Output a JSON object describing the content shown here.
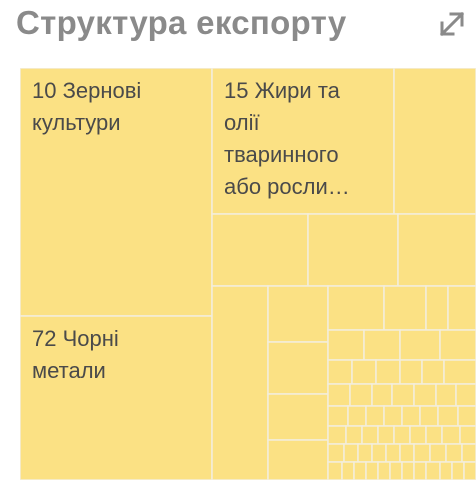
{
  "header": {
    "title": "Структура експорту",
    "expand_icon": "expand-diagonal-arrows-icon",
    "title_color": "#8a8a8a"
  },
  "colors": {
    "cell_fill": "#fbe184",
    "cell_border": "#f3eedc"
  },
  "chart_data": {
    "type": "treemap",
    "title": "Структура експорту",
    "labeled_items": [
      {
        "code": "10",
        "name": "Зернові культури",
        "lines": [
          "10 Зернові",
          "культури"
        ]
      },
      {
        "code": "15",
        "name": "Жири та олії тваринного або росли…",
        "lines": [
          "15 Жири та",
          "олії",
          "тваринного",
          "або росли…"
        ]
      },
      {
        "code": "72",
        "name": "Чорні метали",
        "lines": [
          "72 Чорні",
          "метали"
        ]
      }
    ],
    "unlabeled_cells_note": "many smaller unlabeled categories"
  }
}
